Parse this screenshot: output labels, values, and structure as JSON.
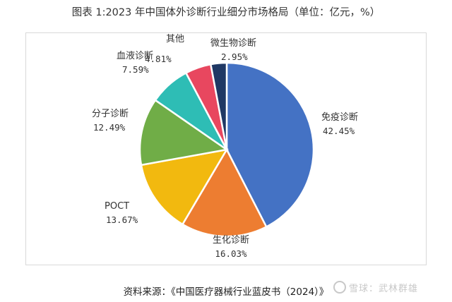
{
  "title": "图表 1:2023 年中国体外诊断行业细分市场格局（单位：亿元，%）",
  "source": "资料来源：《中国医疗器械行业蓝皮书（2024）》",
  "watermark": "雪球：武林群雄",
  "chart_data": {
    "type": "pie",
    "title": "图表 1:2023 年中国体外诊断行业细分市场格局（单位：亿元，%）",
    "slices": [
      {
        "name": "免疫诊断",
        "label": "42.45%",
        "value": 42.45,
        "color": "#4472C4"
      },
      {
        "name": "生化诊断",
        "label": "16.03%",
        "value": 16.03,
        "color": "#ED7D31"
      },
      {
        "name": "POCT",
        "label": "13.67%",
        "value": 13.67,
        "color": "#F2B90F"
      },
      {
        "name": "分子诊断",
        "label": "12.49%",
        "value": 12.49,
        "color": "#70AD47"
      },
      {
        "name": "血液诊断",
        "label": "7.59%",
        "value": 7.59,
        "color": "#2EBDB5"
      },
      {
        "name": "其他",
        "label": "4.81%",
        "value": 4.81,
        "color": "#E8475F"
      },
      {
        "name": "微生物诊断",
        "label": "2.95%",
        "value": 2.95,
        "color": "#1F3864"
      }
    ],
    "start_angle": "12 o'clock",
    "direction": "clockwise",
    "legend": "none"
  }
}
